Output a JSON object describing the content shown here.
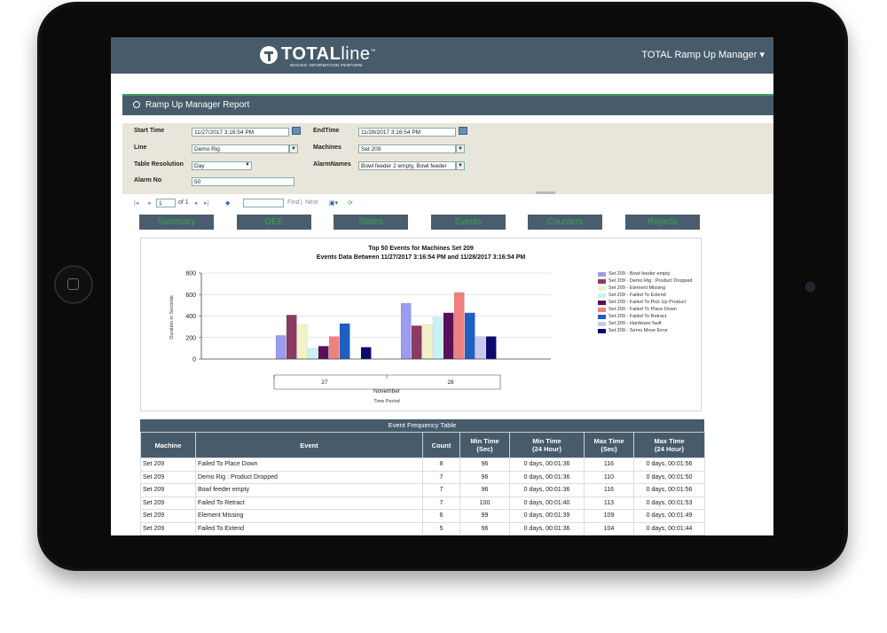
{
  "header": {
    "logo_bold": "TOTAL",
    "logo_light": "line",
    "logo_tm": "™",
    "logo_tagline": "MAKING INFORMATION PERFORM",
    "app_menu": "TOTAL Ramp Up Manager ▾"
  },
  "report": {
    "title": "Ramp Up Manager Report",
    "params": {
      "start_time_label": "Start Time",
      "start_time": "11/27/2017 3:16:54 PM",
      "end_time_label": "EndTime",
      "end_time": "11/28/2017 3:16:54 PM",
      "line_label": "Line",
      "line": "Demo Rig",
      "machines_label": "Machines",
      "machines": "Set 209",
      "table_resolution_label": "Table Resolution",
      "table_resolution": "Day",
      "alarm_names_label": "AlarmNames",
      "alarm_names": "Bowl feeder 2 empty, Bowl feeder",
      "alarm_no_label": "Alarm No",
      "alarm_no": "50"
    },
    "toolbar": {
      "page": "1",
      "of_pages": "of 1",
      "find": "Find",
      "separator": "|",
      "next": "Next"
    },
    "tabs": [
      "Summary",
      "OEE",
      "States",
      "Events",
      "Counters",
      "Rejects"
    ]
  },
  "chart_data": {
    "type": "bar",
    "title": "Top 50 Events for Machines Set 209",
    "subtitle": "Events Data Between 11/27/2017 3:16:54 PM and 11/28/2017 3:16:54 PM",
    "ylabel": "Duration in Seconds",
    "xlabel": "Time Period",
    "ylim": [
      0,
      800
    ],
    "yticks": [
      0,
      200,
      400,
      600,
      800
    ],
    "categories": [
      "27",
      "28"
    ],
    "group_label": "November",
    "legend_position": "right",
    "series": [
      {
        "name": "Set 209 - Bowl feeder empty",
        "color": "#9b9bef",
        "values": [
          220,
          520
        ]
      },
      {
        "name": "Set 209 - Demo Rig : Product Dropped",
        "color": "#8b3a62",
        "values": [
          410,
          310
        ]
      },
      {
        "name": "Set 209 - Element Missing",
        "color": "#f2f2c8",
        "values": [
          320,
          320
        ]
      },
      {
        "name": "Set 209 - Failed To Extend",
        "color": "#c6f2f2",
        "values": [
          100,
          390
        ]
      },
      {
        "name": "Set 209 - Failed To Pick Up Product",
        "color": "#5a0f5a",
        "values": [
          120,
          430
        ]
      },
      {
        "name": "Set 209 - Failed To Place Down",
        "color": "#f08080",
        "values": [
          210,
          620
        ]
      },
      {
        "name": "Set 209 - Failed To Retract",
        "color": "#1f5fc4",
        "values": [
          330,
          430
        ]
      },
      {
        "name": "Set 209 - Hardware fault",
        "color": "#c9c9ef",
        "values": [
          0,
          210
        ]
      },
      {
        "name": "Set 209 - Servo Move Error",
        "color": "#0a0a6e",
        "values": [
          110,
          210
        ]
      }
    ]
  },
  "freq_table": {
    "title": "Event Frequency Table",
    "headers": [
      "Machine",
      "Event",
      "Count",
      "Min Time\n(Sec)",
      "Min Time\n(24 Hour)",
      "Max Time\n(Sec)",
      "Max Time\n(24 Hour)"
    ],
    "rows": [
      [
        "Set 209",
        "Failed To Place Down",
        "8",
        "96",
        "0 days, 00:01:36",
        "116",
        "0 days, 00:01:56"
      ],
      [
        "Set 209",
        "Demo Rig : Product Dropped",
        "7",
        "96",
        "0 days, 00:01:36",
        "110",
        "0 days, 00:01:50"
      ],
      [
        "Set 209",
        "Bowl feeder empty",
        "7",
        "96",
        "0 days, 00:01:36",
        "116",
        "0 days, 00:01:56"
      ],
      [
        "Set 209",
        "Failed To Retract",
        "7",
        "100",
        "0 days, 00:01:40",
        "113",
        "0 days, 00:01:53"
      ],
      [
        "Set 209",
        "Element Missing",
        "6",
        "99",
        "0 days, 00:01:39",
        "109",
        "0 days, 00:01:49"
      ],
      [
        "Set 209",
        "Failed To Extend",
        "5",
        "96",
        "0 days, 00:01:36",
        "104",
        "0 days, 00:01:44"
      ]
    ]
  }
}
